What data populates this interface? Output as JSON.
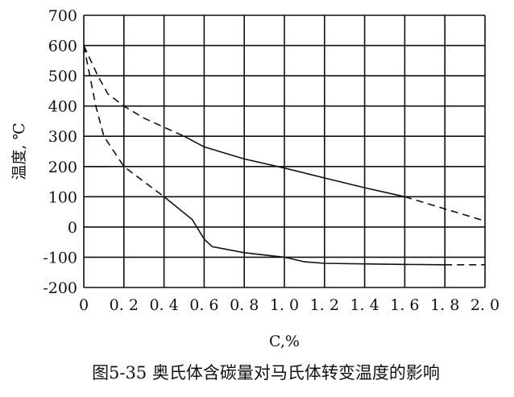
{
  "chart_data": {
    "type": "line",
    "caption": "图5-35 奥氏体含碳量对马氏体转变温度的影响",
    "xlabel": "C,%",
    "ylabel": "温度, ℃",
    "xlim": [
      0,
      2.0
    ],
    "ylim": [
      -200,
      700
    ],
    "grid": true,
    "x_ticks": [
      0,
      0.2,
      0.4,
      0.6,
      0.8,
      1.0,
      1.2,
      1.4,
      1.6,
      1.8,
      2.0
    ],
    "x_tick_labels": [
      "0",
      "0. 2",
      "0. 4",
      "0. 6",
      "0. 8",
      "1. 0",
      "1. 2",
      "1. 4",
      "1. 6",
      "1. 8",
      "2. 0"
    ],
    "y_ticks": [
      700,
      600,
      500,
      400,
      300,
      200,
      100,
      0,
      -100,
      -200
    ],
    "y_tick_labels": [
      "700",
      "600",
      "500",
      "400",
      "300",
      "200",
      "100",
      "0",
      "-100",
      "-200"
    ],
    "line_color": "#111111",
    "series": [
      {
        "style": "dashed",
        "points": [
          [
            0,
            600
          ],
          [
            0.07,
            500
          ],
          [
            0.12,
            440
          ],
          [
            0.2,
            400
          ],
          [
            0.3,
            360
          ],
          [
            0.4,
            330
          ],
          [
            0.5,
            300
          ]
        ]
      },
      {
        "style": "solid",
        "points": [
          [
            0.5,
            300
          ],
          [
            0.6,
            265
          ],
          [
            0.8,
            225
          ],
          [
            1.0,
            195
          ],
          [
            1.2,
            162
          ],
          [
            1.4,
            130
          ],
          [
            1.6,
            100
          ]
        ]
      },
      {
        "style": "dashed",
        "points": [
          [
            1.6,
            100
          ],
          [
            1.8,
            60
          ],
          [
            2.0,
            20
          ]
        ]
      },
      {
        "style": "solid",
        "points": [
          [
            0,
            200
          ],
          [
            0.13,
            200
          ]
        ]
      },
      {
        "style": "dashed",
        "points": [
          [
            0,
            600
          ],
          [
            0.03,
            500
          ],
          [
            0.06,
            400
          ],
          [
            0.1,
            300
          ],
          [
            0.2,
            200
          ],
          [
            0.3,
            150
          ],
          [
            0.4,
            100
          ]
        ]
      },
      {
        "style": "solid",
        "points": [
          [
            0.4,
            100
          ],
          [
            0.54,
            25
          ],
          [
            0.6,
            -40
          ],
          [
            0.64,
            -65
          ],
          [
            0.8,
            -85
          ],
          [
            1.0,
            -100
          ],
          [
            1.1,
            -115
          ],
          [
            1.2,
            -120
          ],
          [
            1.5,
            -123
          ],
          [
            1.8,
            -125
          ]
        ]
      },
      {
        "style": "dashed",
        "points": [
          [
            1.8,
            -125
          ],
          [
            2.0,
            -125
          ]
        ]
      }
    ]
  }
}
